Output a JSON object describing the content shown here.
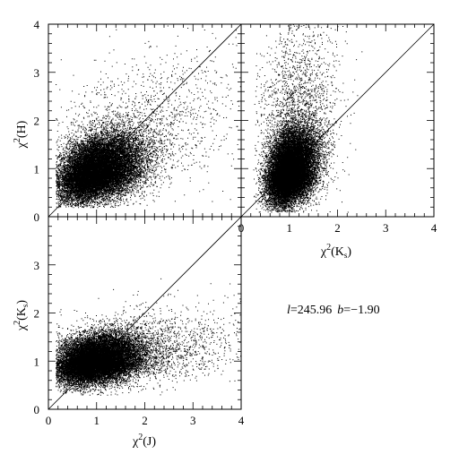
{
  "chart_data": [
    {
      "type": "scatter",
      "panel": "top-left",
      "xlabel": "",
      "ylabel": "χ²(H)",
      "xlim": [
        0,
        4
      ],
      "ylim": [
        0,
        4
      ],
      "xticks": [],
      "yticks": [
        "0",
        "1",
        "2",
        "3",
        "4"
      ],
      "reference_line": {
        "x": [
          0,
          4
        ],
        "y": [
          0,
          4
        ]
      },
      "clusters": [
        {
          "cx": 1.0,
          "cy": 0.95,
          "sx": 0.38,
          "sy": 0.3,
          "n": 18000,
          "rho": 0.35
        },
        {
          "cx": 1.5,
          "cy": 1.5,
          "sx": 0.9,
          "sy": 0.7,
          "n": 2200,
          "rho": 0.45
        }
      ],
      "scatter_xlim": [
        0.15,
        4
      ],
      "scatter_ylim": [
        0.2,
        4
      ]
    },
    {
      "type": "scatter",
      "panel": "top-right",
      "xlabel": "χ²(Ks)",
      "ylabel": "",
      "xlim": [
        0,
        4
      ],
      "ylim": [
        0,
        4
      ],
      "xticks": [
        "0",
        "1",
        "2",
        "3",
        "4"
      ],
      "yticks": [],
      "reference_line": {
        "x": [
          0,
          4
        ],
        "y": [
          0,
          4
        ]
      },
      "clusters": [
        {
          "cx": 1.0,
          "cy": 0.95,
          "sx": 0.22,
          "sy": 0.33,
          "n": 18000,
          "rho": 0.3
        },
        {
          "cx": 1.1,
          "cy": 1.8,
          "sx": 0.35,
          "sy": 0.9,
          "n": 2500,
          "rho": 0.2
        }
      ],
      "scatter_xlim": [
        0.25,
        4
      ],
      "scatter_ylim": [
        0.1,
        4
      ]
    },
    {
      "type": "scatter",
      "panel": "bottom-left",
      "xlabel": "χ²(J)",
      "ylabel": "χ²(Ks)",
      "xlim": [
        0,
        4
      ],
      "ylim": [
        0,
        4
      ],
      "xticks": [
        "0",
        "1",
        "2",
        "3",
        "4"
      ],
      "yticks": [
        "0",
        "1",
        "2",
        "3"
      ],
      "reference_line": {
        "x": [
          0,
          4
        ],
        "y": [
          0,
          4
        ]
      },
      "clusters": [
        {
          "cx": 0.95,
          "cy": 1.0,
          "sx": 0.38,
          "sy": 0.22,
          "n": 18000,
          "rho": 0.25
        },
        {
          "cx": 1.7,
          "cy": 1.15,
          "sx": 0.9,
          "sy": 0.35,
          "n": 2500,
          "rho": 0.35
        }
      ],
      "scatter_xlim": [
        0.15,
        4
      ],
      "scatter_ylim": [
        0.3,
        4
      ]
    }
  ],
  "annotation": {
    "l_label": "l",
    "l_value": "=245.96",
    "b_label": "b",
    "b_value": "=−1.90"
  },
  "labels": {
    "top_left_ylabel_main": "χ",
    "top_left_ylabel_sup": "2",
    "top_left_ylabel_arg": "(H)",
    "top_right_xlabel_main": "χ",
    "top_right_xlabel_sup": "2",
    "top_right_xlabel_arg": "(K",
    "top_right_xlabel_sub": "s",
    "top_right_xlabel_close": ")",
    "bottom_ylabel_main": "χ",
    "bottom_ylabel_sup": "2",
    "bottom_ylabel_arg": "(K",
    "bottom_ylabel_sub": "s",
    "bottom_ylabel_close": ")",
    "bottom_xlabel_main": "χ",
    "bottom_xlabel_sup": "2",
    "bottom_xlabel_arg": "(J)"
  },
  "colors": {
    "points": "#000000",
    "frame": "#000000"
  }
}
